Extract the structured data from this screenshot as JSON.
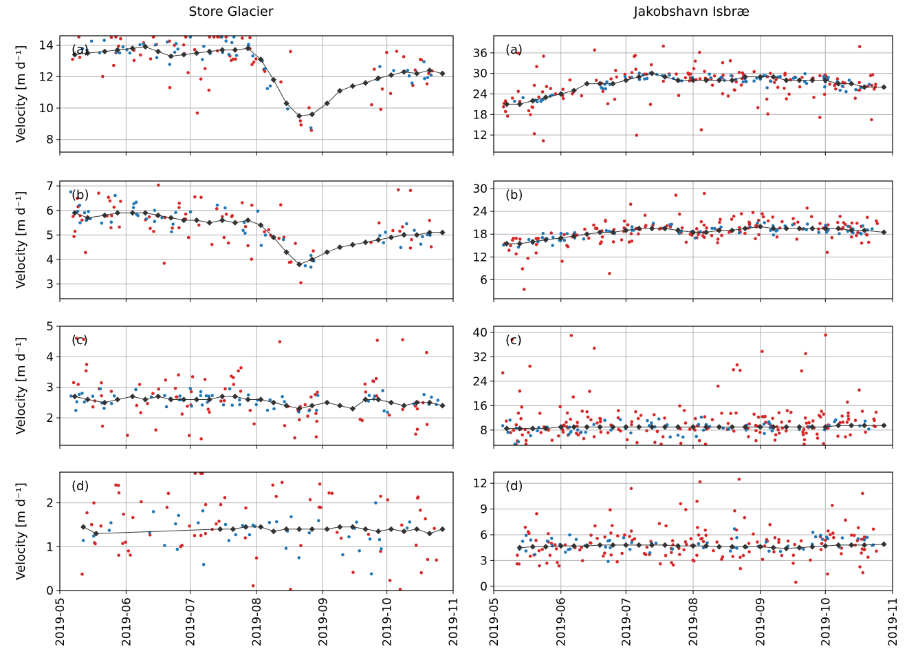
{
  "figure": {
    "column_titles": [
      "Store Glacier",
      "Jakobshavn Isbræ"
    ],
    "ylabel": "Velocity [m d⁻¹]",
    "x_tick_labels": [
      "2019-05",
      "2019-06",
      "2019-07",
      "2019-08",
      "2019-09",
      "2019-10",
      "2019-11"
    ],
    "colors": {
      "series_a": "#d62728",
      "series_b": "#1f77b4",
      "combined": "#333333",
      "grid": "#b0b0b0"
    }
  },
  "chart_data": [
    {
      "type": "scatter",
      "glacier": "Store Glacier",
      "panel": "(a)",
      "xlabel": "",
      "ylabel": "Velocity [m d⁻¹]",
      "xlim": [
        "2019-05-01",
        "2019-11-01"
      ],
      "ylim": [
        7.2,
        14.6
      ],
      "yticks": [
        8,
        10,
        12,
        14
      ],
      "combined_series": {
        "x": [
          "2019-05-08",
          "2019-05-14",
          "2019-05-22",
          "2019-05-28",
          "2019-06-04",
          "2019-06-10",
          "2019-06-16",
          "2019-06-22",
          "2019-06-28",
          "2019-07-04",
          "2019-07-10",
          "2019-07-16",
          "2019-07-22",
          "2019-07-28",
          "2019-08-03",
          "2019-08-09",
          "2019-08-15",
          "2019-08-21",
          "2019-08-27",
          "2019-09-03",
          "2019-09-09",
          "2019-09-15",
          "2019-09-21",
          "2019-09-27",
          "2019-10-03",
          "2019-10-09",
          "2019-10-15",
          "2019-10-21",
          "2019-10-27"
        ],
        "y": [
          13.4,
          13.5,
          13.6,
          13.7,
          13.8,
          13.9,
          13.6,
          13.3,
          13.4,
          13.5,
          13.6,
          13.7,
          13.7,
          13.8,
          13.1,
          11.8,
          10.3,
          9.5,
          9.6,
          10.3,
          11.1,
          11.4,
          11.6,
          11.9,
          12.1,
          12.3,
          12.2,
          12.4,
          12.2
        ]
      },
      "scatter_gap": [
        "2019-08-28",
        "2019-09-22"
      ],
      "spread": 0.7,
      "outlier_range": [
        7.5,
        14.2
      ],
      "density_red": 80,
      "density_blue": 60
    },
    {
      "type": "scatter",
      "glacier": "Store Glacier",
      "panel": "(b)",
      "xlabel": "",
      "ylabel": "Velocity [m d⁻¹]",
      "xlim": [
        "2019-05-01",
        "2019-11-01"
      ],
      "ylim": [
        2.4,
        7.2
      ],
      "yticks": [
        3,
        4,
        5,
        6,
        7
      ],
      "combined_series": {
        "x": [
          "2019-05-08",
          "2019-05-14",
          "2019-05-22",
          "2019-05-28",
          "2019-06-04",
          "2019-06-10",
          "2019-06-16",
          "2019-06-22",
          "2019-06-28",
          "2019-07-04",
          "2019-07-10",
          "2019-07-16",
          "2019-07-22",
          "2019-07-28",
          "2019-08-03",
          "2019-08-09",
          "2019-08-15",
          "2019-08-21",
          "2019-08-27",
          "2019-09-03",
          "2019-09-09",
          "2019-09-15",
          "2019-09-21",
          "2019-09-27",
          "2019-10-03",
          "2019-10-09",
          "2019-10-15",
          "2019-10-21",
          "2019-10-27"
        ],
        "y": [
          5.9,
          5.7,
          5.8,
          5.9,
          5.9,
          5.9,
          5.8,
          5.7,
          5.6,
          5.6,
          5.5,
          5.6,
          5.5,
          5.6,
          5.4,
          4.9,
          4.3,
          3.8,
          4.0,
          4.3,
          4.5,
          4.6,
          4.7,
          4.8,
          4.9,
          5.0,
          5.0,
          5.1,
          5.1
        ]
      },
      "scatter_gap": [
        "2019-08-28",
        "2019-09-22"
      ],
      "spread": 0.45,
      "outlier_range": [
        2.7,
        6.9
      ],
      "density_red": 80,
      "density_blue": 60
    },
    {
      "type": "scatter",
      "glacier": "Store Glacier",
      "panel": "(c)",
      "xlabel": "",
      "ylabel": "Velocity [m d⁻¹]",
      "xlim": [
        "2019-05-01",
        "2019-11-01"
      ],
      "ylim": [
        1.1,
        5.0
      ],
      "yticks": [
        2,
        3,
        4,
        5
      ],
      "combined_series": {
        "x": [
          "2019-05-08",
          "2019-05-14",
          "2019-05-22",
          "2019-05-28",
          "2019-06-04",
          "2019-06-10",
          "2019-06-16",
          "2019-06-22",
          "2019-06-28",
          "2019-07-04",
          "2019-07-10",
          "2019-07-16",
          "2019-07-22",
          "2019-07-28",
          "2019-08-03",
          "2019-08-09",
          "2019-08-15",
          "2019-08-21",
          "2019-08-27",
          "2019-09-03",
          "2019-09-09",
          "2019-09-15",
          "2019-09-21",
          "2019-09-27",
          "2019-10-03",
          "2019-10-09",
          "2019-10-15",
          "2019-10-21",
          "2019-10-27"
        ],
        "y": [
          2.7,
          2.6,
          2.5,
          2.6,
          2.7,
          2.6,
          2.7,
          2.6,
          2.6,
          2.6,
          2.6,
          2.7,
          2.7,
          2.6,
          2.6,
          2.5,
          2.4,
          2.3,
          2.4,
          2.5,
          2.4,
          2.3,
          2.6,
          2.6,
          2.5,
          2.4,
          2.5,
          2.5,
          2.4
        ]
      },
      "scatter_gap": [
        "2019-09-01",
        "2019-09-18"
      ],
      "spread": 0.35,
      "outlier_range": [
        1.3,
        4.8
      ],
      "density_red": 90,
      "density_blue": 70
    },
    {
      "type": "scatter",
      "glacier": "Store Glacier",
      "panel": "(d)",
      "xlabel": "",
      "ylabel": "Velocity [m d⁻¹]",
      "xlim": [
        "2019-05-01",
        "2019-11-01"
      ],
      "ylim": [
        0,
        2.7
      ],
      "yticks": [
        0,
        1,
        2
      ],
      "combined_series": {
        "x": [
          "2019-05-12",
          "2019-05-18",
          "2019-07-15",
          "2019-07-21",
          "2019-07-27",
          "2019-08-03",
          "2019-08-09",
          "2019-08-15",
          "2019-08-21",
          "2019-08-27",
          "2019-09-03",
          "2019-09-09",
          "2019-09-15",
          "2019-09-21",
          "2019-09-27",
          "2019-10-03",
          "2019-10-09",
          "2019-10-15",
          "2019-10-21",
          "2019-10-27"
        ],
        "y": [
          1.45,
          1.3,
          1.4,
          1.4,
          1.45,
          1.45,
          1.35,
          1.4,
          1.4,
          1.4,
          1.4,
          1.45,
          1.45,
          1.4,
          1.35,
          1.4,
          1.35,
          1.4,
          1.3,
          1.4
        ]
      },
      "scatter_gap": [],
      "spread": 0.5,
      "outlier_range": [
        0.1,
        2.5
      ],
      "density_red": 70,
      "density_blue": 40
    },
    {
      "type": "scatter",
      "glacier": "Jakobshavn Isbræ",
      "panel": "(a)",
      "xlabel": "",
      "ylabel": "",
      "xlim": [
        "2019-05-01",
        "2019-11-01"
      ],
      "ylim": [
        7,
        41
      ],
      "yticks": [
        12,
        18,
        24,
        30,
        36
      ],
      "combined_series": {
        "x": [
          "2019-05-07",
          "2019-05-13",
          "2019-05-19",
          "2019-05-25",
          "2019-06-01",
          "2019-06-07",
          "2019-06-13",
          "2019-06-19",
          "2019-06-25",
          "2019-07-01",
          "2019-07-07",
          "2019-07-13",
          "2019-07-19",
          "2019-07-25",
          "2019-08-01",
          "2019-08-07",
          "2019-08-13",
          "2019-08-19",
          "2019-08-25",
          "2019-09-01",
          "2019-09-07",
          "2019-09-13",
          "2019-09-19",
          "2019-09-25",
          "2019-10-01",
          "2019-10-07",
          "2019-10-13",
          "2019-10-19",
          "2019-10-28"
        ],
        "y": [
          21,
          21,
          22,
          23,
          24,
          25,
          27,
          27,
          27,
          28,
          29,
          30,
          29,
          28,
          28,
          28,
          28,
          28,
          29,
          29,
          29,
          28,
          28,
          28,
          28,
          27,
          27,
          26,
          26
        ]
      },
      "scatter_gap": [],
      "spread": 1.6,
      "outlier_range": [
        10,
        39
      ],
      "density_red": 140,
      "density_blue": 70
    },
    {
      "type": "scatter",
      "glacier": "Jakobshavn Isbræ",
      "panel": "(b)",
      "xlabel": "",
      "ylabel": "",
      "xlim": [
        "2019-05-01",
        "2019-11-01"
      ],
      "ylim": [
        1,
        32
      ],
      "yticks": [
        6,
        12,
        18,
        24,
        30
      ],
      "combined_series": {
        "x": [
          "2019-05-07",
          "2019-05-13",
          "2019-05-19",
          "2019-05-25",
          "2019-06-01",
          "2019-06-07",
          "2019-06-13",
          "2019-06-19",
          "2019-06-25",
          "2019-07-01",
          "2019-07-07",
          "2019-07-13",
          "2019-07-19",
          "2019-07-25",
          "2019-08-01",
          "2019-08-07",
          "2019-08-13",
          "2019-08-19",
          "2019-08-25",
          "2019-09-01",
          "2019-09-07",
          "2019-09-13",
          "2019-09-19",
          "2019-09-25",
          "2019-10-01",
          "2019-10-07",
          "2019-10-13",
          "2019-10-19",
          "2019-10-28"
        ],
        "y": [
          15.5,
          15.5,
          16,
          16.5,
          17,
          17.5,
          18,
          18.5,
          18.5,
          19,
          19.5,
          19.5,
          19.5,
          19,
          18.5,
          18.5,
          19,
          19,
          19.5,
          20,
          19.5,
          19.5,
          19.5,
          19.5,
          19.5,
          19.5,
          19,
          19,
          18.5
        ]
      },
      "scatter_gap": [],
      "spread": 1.2,
      "outlier_range": [
        3,
        31
      ],
      "density_red": 150,
      "density_blue": 70
    },
    {
      "type": "scatter",
      "glacier": "Jakobshavn Isbræ",
      "panel": "(c)",
      "xlabel": "",
      "ylabel": "",
      "xlim": [
        "2019-05-01",
        "2019-11-01"
      ],
      "ylim": [
        3,
        42
      ],
      "yticks": [
        8,
        16,
        24,
        32,
        40
      ],
      "combined_series": {
        "x": [
          "2019-05-07",
          "2019-05-13",
          "2019-05-19",
          "2019-05-25",
          "2019-06-01",
          "2019-06-07",
          "2019-06-13",
          "2019-06-19",
          "2019-06-25",
          "2019-07-01",
          "2019-07-07",
          "2019-07-13",
          "2019-07-19",
          "2019-07-25",
          "2019-08-01",
          "2019-08-07",
          "2019-08-13",
          "2019-08-19",
          "2019-08-25",
          "2019-09-01",
          "2019-09-07",
          "2019-09-13",
          "2019-09-19",
          "2019-09-25",
          "2019-10-01",
          "2019-10-07",
          "2019-10-13",
          "2019-10-19",
          "2019-10-28"
        ],
        "y": [
          8.5,
          8.5,
          8.5,
          8.5,
          9,
          9,
          9,
          9,
          9,
          9,
          9,
          9,
          9,
          9,
          9,
          9,
          9,
          9,
          9,
          9,
          9,
          9,
          9,
          9,
          9,
          9.5,
          9.5,
          9.5,
          9.5
        ]
      },
      "scatter_gap": [],
      "spread": 2.2,
      "outlier_range": [
        4,
        40
      ],
      "density_red": 180,
      "density_blue": 60
    },
    {
      "type": "scatter",
      "glacier": "Jakobshavn Isbræ",
      "panel": "(d)",
      "xlabel": "",
      "ylabel": "",
      "xlim": [
        "2019-05-01",
        "2019-11-01"
      ],
      "ylim": [
        -0.5,
        13.3
      ],
      "yticks": [
        0,
        3,
        6,
        9,
        12
      ],
      "combined_series": {
        "x": [
          "2019-05-13",
          "2019-05-19",
          "2019-05-25",
          "2019-06-01",
          "2019-06-07",
          "2019-06-13",
          "2019-06-19",
          "2019-06-25",
          "2019-07-01",
          "2019-07-07",
          "2019-07-13",
          "2019-07-19",
          "2019-07-25",
          "2019-08-01",
          "2019-08-07",
          "2019-08-13",
          "2019-08-19",
          "2019-08-25",
          "2019-09-01",
          "2019-09-07",
          "2019-09-13",
          "2019-09-19",
          "2019-09-25",
          "2019-10-01",
          "2019-10-07",
          "2019-10-13",
          "2019-10-19",
          "2019-10-28"
        ],
        "y": [
          4.5,
          4.6,
          4.6,
          4.7,
          4.7,
          4.7,
          4.8,
          4.8,
          4.8,
          4.8,
          4.8,
          4.8,
          4.7,
          4.7,
          4.7,
          4.6,
          4.6,
          4.6,
          4.6,
          4.5,
          4.4,
          4.5,
          4.6,
          4.7,
          4.8,
          4.8,
          4.8,
          4.9
        ]
      },
      "scatter_gap": [],
      "spread": 1.1,
      "outlier_range": [
        0.3,
        12.5
      ],
      "density_red": 150,
      "density_blue": 60
    }
  ]
}
